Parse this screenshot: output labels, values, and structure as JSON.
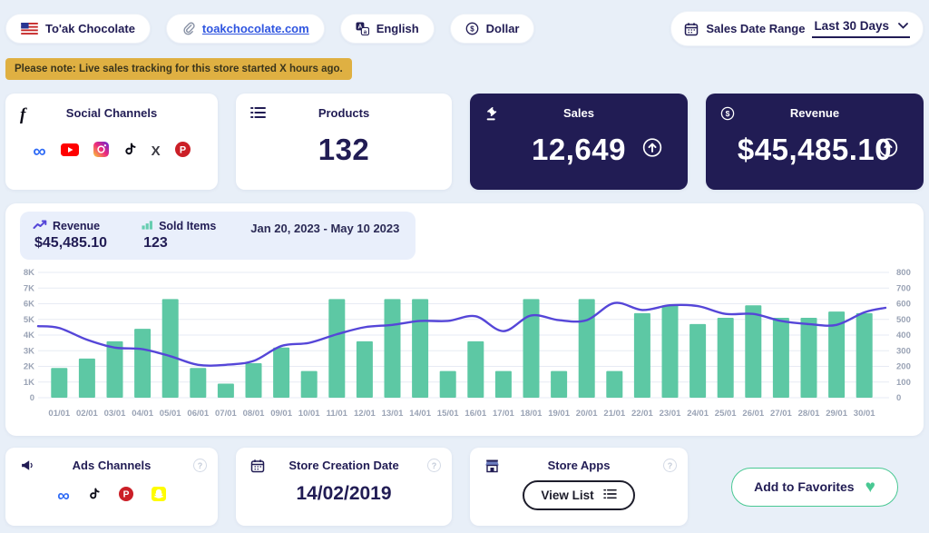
{
  "header": {
    "store_name": "To'ak Chocolate",
    "store_url": "toakchocolate.com",
    "language": "English",
    "currency": "Dollar",
    "date_range_label": "Sales Date Range",
    "date_range_value": "Last 30 Days"
  },
  "notice": "Please note: Live sales tracking for this store started X hours ago.",
  "stats": {
    "social": {
      "title": "Social Channels",
      "channels": [
        "meta",
        "youtube",
        "instagram",
        "tiktok",
        "x",
        "pinterest"
      ]
    },
    "products": {
      "title": "Products",
      "value": "132"
    },
    "sales": {
      "title": "Sales",
      "value": "12,649",
      "trend": "up"
    },
    "revenue": {
      "title": "Revenue",
      "value": "$45,485.10",
      "trend": "up"
    }
  },
  "chart_panel": {
    "legend": {
      "revenue_label": "Revenue",
      "revenue_value": "$45,485.10",
      "sold_label": "Sold Items",
      "sold_value": "123",
      "date_range": "Jan 20, 2023 - May 10 2023"
    }
  },
  "chart_data": {
    "type": "bar",
    "x": [
      "01/01",
      "02/01",
      "03/01",
      "04/01",
      "05/01",
      "06/01",
      "07/01",
      "08/01",
      "09/01",
      "10/01",
      "11/01",
      "12/01",
      "13/01",
      "14/01",
      "15/01",
      "16/01",
      "17/01",
      "18/01",
      "19/01",
      "20/01",
      "21/01",
      "22/01",
      "23/01",
      "24/01",
      "25/01",
      "26/01",
      "27/01",
      "28/01",
      "29/01",
      "30/01"
    ],
    "left_axis": {
      "ticks": [
        "8K",
        "7K",
        "6K",
        "5K",
        "4K",
        "3K",
        "2K",
        "1K",
        "0"
      ],
      "max": 8000
    },
    "right_axis": {
      "ticks": [
        "800",
        "700",
        "600",
        "500",
        "400",
        "300",
        "200",
        "100",
        "0"
      ],
      "max": 800
    },
    "grid": true,
    "legend_position": "top-left",
    "series": [
      {
        "name": "Sold Items",
        "type": "bar",
        "color": "#5dc8a4",
        "values_left_axis": [
          1900,
          2500,
          3600,
          4400,
          6300,
          1900,
          900,
          2200,
          3200,
          1700,
          6300,
          3600,
          6300,
          6300,
          1700,
          3600,
          1700,
          6300,
          1700,
          6300,
          1700,
          5400,
          5900,
          4700,
          5100,
          5900,
          5100,
          5100,
          5500,
          5400
        ]
      },
      {
        "name": "Revenue",
        "type": "line",
        "color": "#5546d8",
        "values_right_axis": [
          445,
          370,
          320,
          310,
          265,
          210,
          210,
          235,
          330,
          350,
          405,
          450,
          465,
          490,
          490,
          520,
          425,
          525,
          495,
          495,
          605,
          560,
          590,
          585,
          535,
          535,
          490,
          470,
          465,
          545
        ]
      }
    ]
  },
  "footer": {
    "ads": {
      "title": "Ads Channels",
      "channels": [
        "meta",
        "tiktok",
        "pinterest",
        "snapchat"
      ]
    },
    "creation": {
      "title": "Store Creation Date",
      "value": "14/02/2019"
    },
    "apps": {
      "title": "Store Apps",
      "button_label": "View List"
    },
    "favorites_label": "Add to Favorites"
  },
  "colors": {
    "navy": "#211c54",
    "bar_teal": "#5dc8a4",
    "line_purple": "#5546d8",
    "banner_yellow": "#dfb042",
    "accent_green": "#49c893",
    "background": "#e8eff8"
  }
}
